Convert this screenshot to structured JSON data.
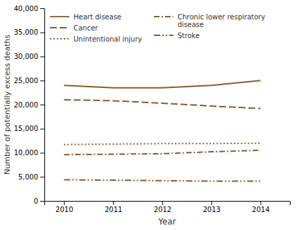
{
  "chart_data": {
    "type": "line",
    "x": [
      2010,
      2011,
      2012,
      2013,
      2014
    ],
    "series": [
      {
        "name": "Heart disease",
        "color": "#8B5A2B",
        "line_style": "solid",
        "values": [
          24000,
          23500,
          23500,
          24000,
          25000
        ]
      },
      {
        "name": "Cancer",
        "color": "#8B5A2B",
        "line_style": "dashed",
        "values": [
          21000,
          20800,
          20300,
          19700,
          19200
        ]
      },
      {
        "name": "Unintentional injury",
        "color": "#8B5A2B",
        "line_style": "dotted",
        "values": [
          11700,
          11800,
          11900,
          11900,
          12000
        ]
      },
      {
        "name": "Chronic lower respiratory\ndisease",
        "color": "#8B5A2B",
        "line_style": "dashdot",
        "values": [
          9600,
          9700,
          9800,
          10200,
          10500
        ]
      },
      {
        "name": "Stroke",
        "color": "#8B5A2B",
        "line_style": "dashdotdot",
        "values": [
          4400,
          4300,
          4200,
          4100,
          4100
        ]
      }
    ],
    "xlabel": "Year",
    "ylabel": "Number of potentially excess deaths",
    "xlim": [
      2009.6,
      2014.6
    ],
    "xticks": [
      2010,
      2011,
      2012,
      2013,
      2014
    ],
    "ylim": [
      0,
      40000
    ],
    "yticks": [
      0,
      {
        "value": 5000,
        "label": "5,000"
      },
      {
        "value": 10000,
        "label": "10,000"
      },
      {
        "value": 15000,
        "label": "15,000"
      },
      {
        "value": 20000,
        "label": "20,000"
      },
      {
        "value": 25000,
        "label": "25,000"
      },
      {
        "value": 30000,
        "label": "30,000"
      },
      {
        "value": 35000,
        "label": "35,000"
      },
      {
        "value": 40000,
        "label": "40,000"
      }
    ],
    "grid": false,
    "legend": "upper left"
  }
}
